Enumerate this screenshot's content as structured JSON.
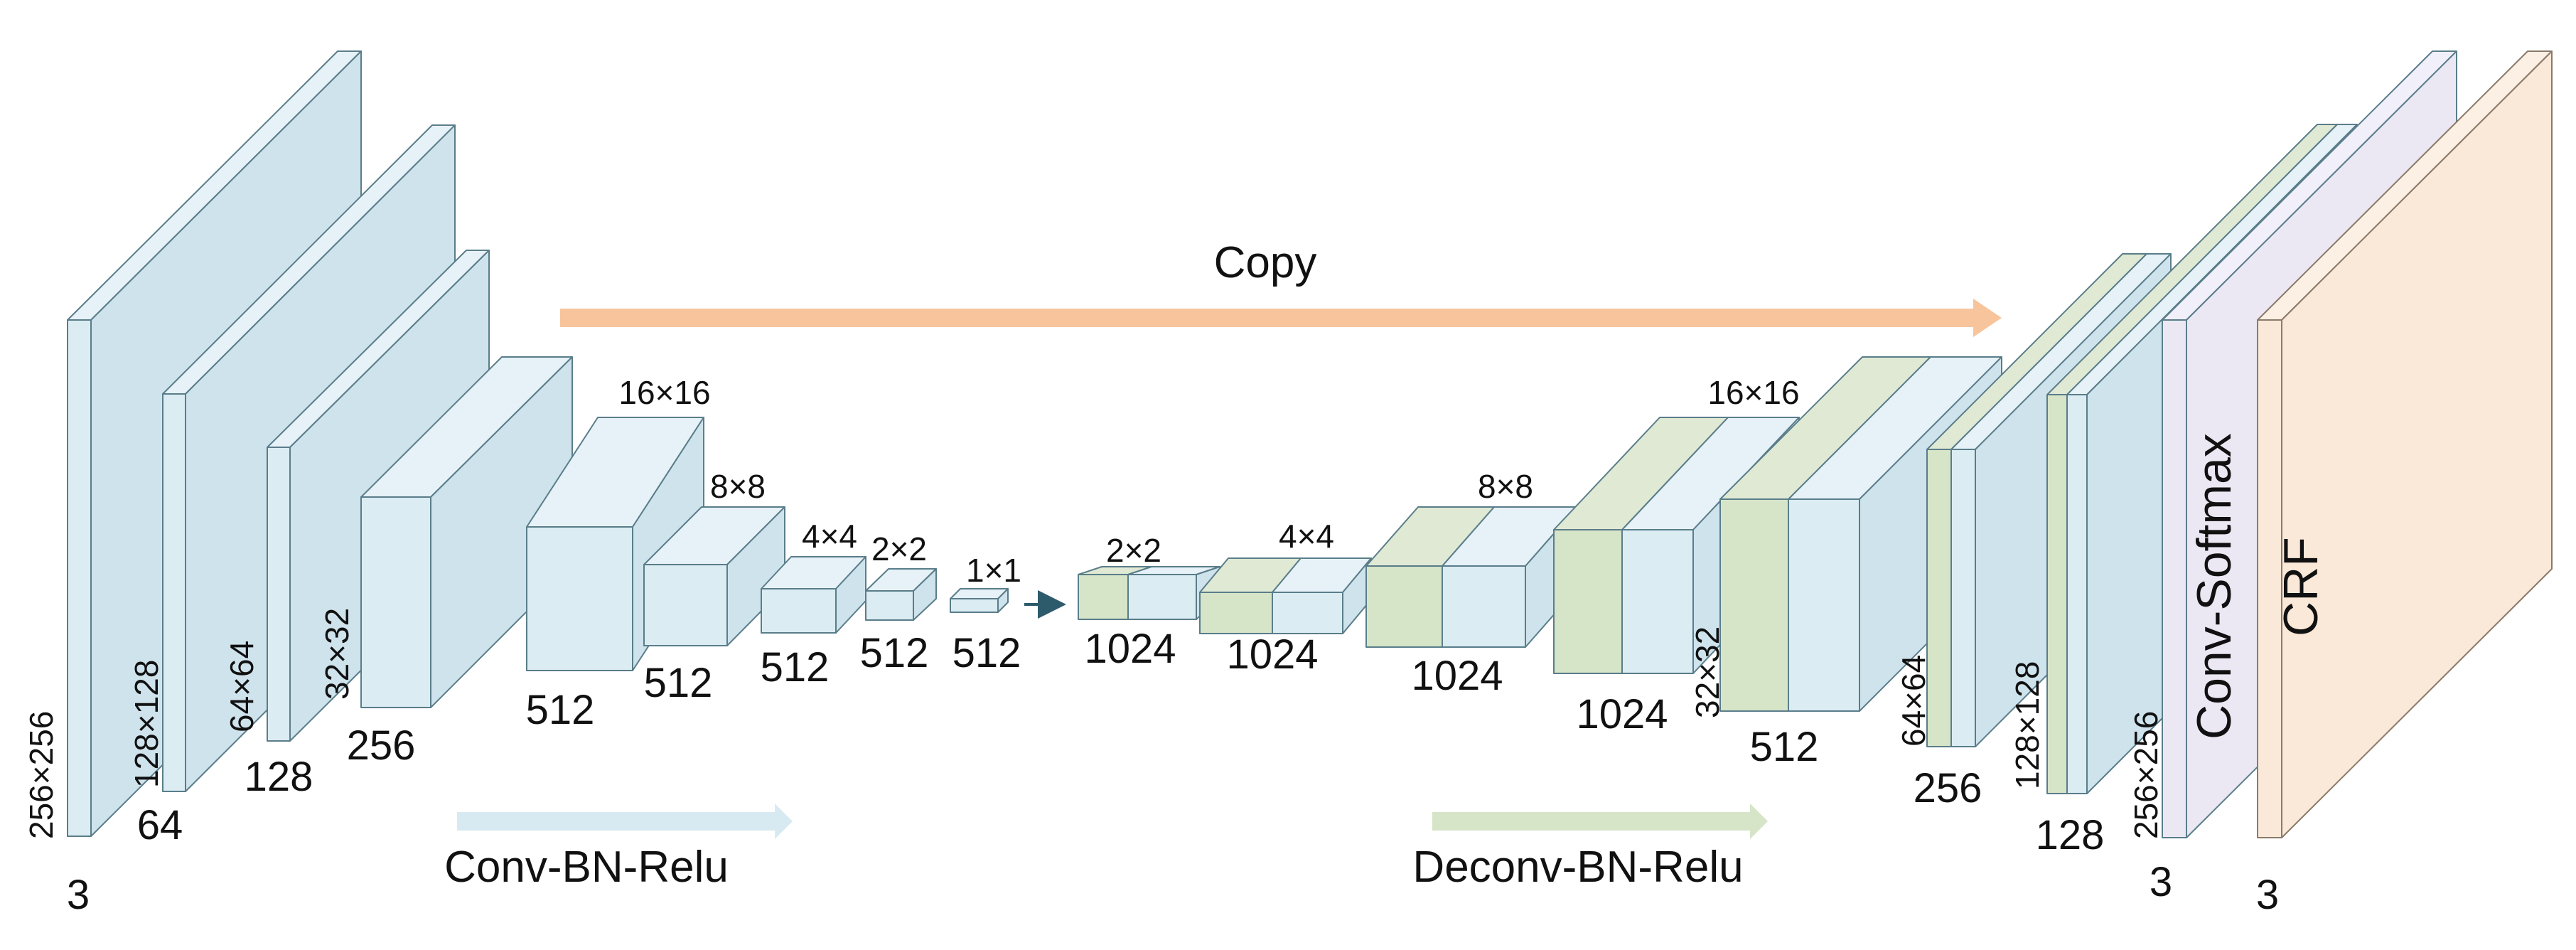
{
  "colors": {
    "encoder_block": "#dbecf3",
    "decoder_block": "#d6e4c8",
    "stroke": "#5a7d8a",
    "copy_arrow": "#f7c49c",
    "conv_arrow": "#d8eaf1",
    "deconv_arrow": "#d6e4c8",
    "softmax_block": "#ebe8f4",
    "crf_block": "#fae8d8",
    "small_arrow": "#2d5b6b"
  },
  "labels": {
    "copy": "Copy",
    "conv_bn_relu": "Conv-BN-Relu",
    "deconv_bn_relu": "Deconv-BN-Relu",
    "conv_softmax": "Conv-Softmax",
    "crf": "CRF"
  },
  "encoder": {
    "input_channels": "3",
    "input_size": "256×256",
    "l1_channels": "64",
    "l1_size": "128×128",
    "l2_channels": "128",
    "l2_size": "64×64",
    "l3_channels": "256",
    "l3_size": "32×32",
    "l4_channels": "512",
    "l4_size": "16×16",
    "l5_channels": "512",
    "l5_size": "8×8",
    "l6_channels": "512",
    "l6_size": "4×4",
    "l7_channels": "512",
    "l7_size": "2×2",
    "l8_channels": "512",
    "l8_size": "1×1"
  },
  "decoder": {
    "d1_channels": "1024",
    "d1_size": "2×2",
    "d2_channels": "1024",
    "d2_size": "4×4",
    "d3_channels": "1024",
    "d3_size": "8×8",
    "d4_channels": "1024",
    "d4_size": "16×16",
    "d5_channels": "512",
    "d5_size": "32×32",
    "d6_channels": "256",
    "d6_size": "64×64",
    "d7_channels": "128",
    "d7_size": "128×128",
    "out_channels": "3",
    "out_size": "256×256",
    "crf_channels": "3"
  }
}
